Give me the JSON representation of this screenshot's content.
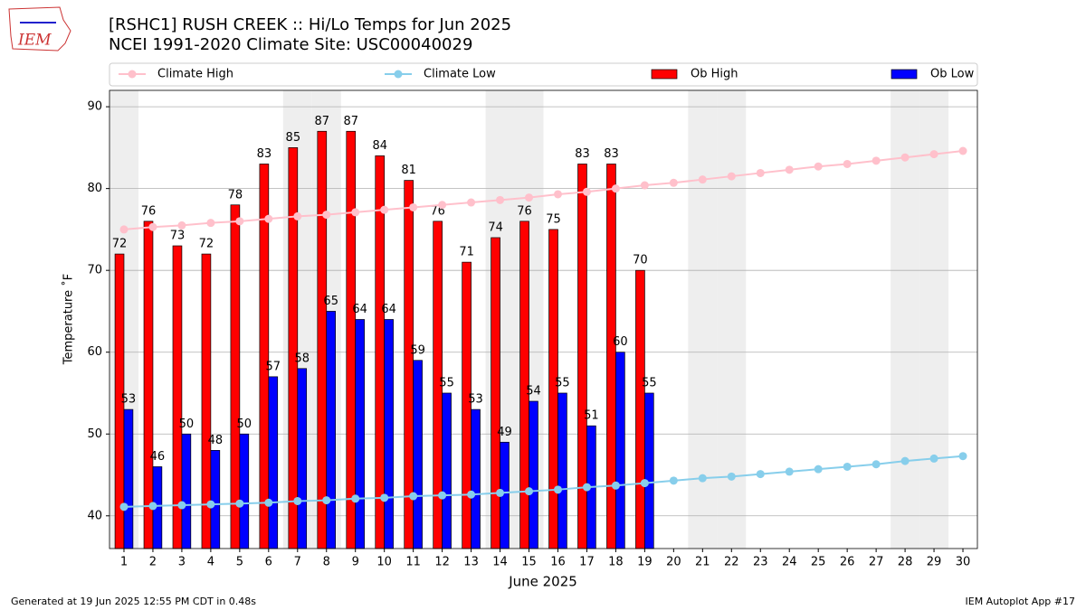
{
  "chart_data": {
    "type": "bar",
    "logo_text": "IEM",
    "title": "[RSHC1] RUSH CREEK :: Hi/Lo Temps for Jun 2025",
    "subtitle": "NCEI 1991-2020 Climate Site: USC00040029",
    "x_label": "June 2025",
    "y_label": "Temperature ˚F",
    "footer_left": "Generated at 19 Jun 2025 12:55 PM CDT in 0.48s",
    "footer_right": "IEM Autoplot App #17",
    "categories": [
      "1",
      "2",
      "3",
      "4",
      "5",
      "6",
      "7",
      "8",
      "9",
      "10",
      "11",
      "12",
      "13",
      "14",
      "15",
      "16",
      "17",
      "18",
      "19",
      "20",
      "21",
      "22",
      "23",
      "24",
      "25",
      "26",
      "27",
      "28",
      "29",
      "30"
    ],
    "weekend_days": [
      1,
      7,
      8,
      14,
      15,
      21,
      22,
      28,
      29
    ],
    "weekend_color": "#eeeeee",
    "series": [
      {
        "name": "Climate High",
        "type": "line",
        "color": "#ffc0cb",
        "values": [
          75.0,
          75.3,
          75.5,
          75.8,
          76.0,
          76.3,
          76.6,
          76.8,
          77.1,
          77.4,
          77.7,
          78.0,
          78.3,
          78.6,
          78.9,
          79.3,
          79.6,
          80.0,
          80.4,
          80.7,
          81.1,
          81.5,
          81.9,
          82.3,
          82.7,
          83.0,
          83.4,
          83.8,
          84.2,
          84.6
        ]
      },
      {
        "name": "Climate Low",
        "type": "line",
        "color": "#87ceeb",
        "values": [
          41.1,
          41.2,
          41.3,
          41.4,
          41.5,
          41.6,
          41.8,
          41.9,
          42.1,
          42.2,
          42.4,
          42.5,
          42.6,
          42.8,
          43.0,
          43.2,
          43.5,
          43.7,
          44.0,
          44.3,
          44.6,
          44.8,
          45.1,
          45.4,
          45.7,
          46.0,
          46.3,
          46.7,
          47.0,
          47.3
        ]
      },
      {
        "name": "Ob High",
        "type": "bar",
        "color": "#ff0000",
        "values": [
          72,
          76,
          73,
          72,
          78,
          83,
          85,
          87,
          87,
          84,
          81,
          76,
          71,
          74,
          76,
          75,
          83,
          83,
          70,
          null,
          null,
          null,
          null,
          null,
          null,
          null,
          null,
          null,
          null,
          null
        ]
      },
      {
        "name": "Ob Low",
        "type": "bar",
        "color": "#0000ff",
        "values": [
          53,
          46,
          50,
          48,
          50,
          57,
          58,
          65,
          64,
          64,
          59,
          55,
          53,
          49,
          54,
          55,
          51,
          60,
          55,
          null,
          null,
          null,
          null,
          null,
          null,
          null,
          null,
          null,
          null,
          null
        ]
      }
    ],
    "ylim": [
      36,
      92
    ],
    "yticks": [
      40,
      50,
      60,
      70,
      80,
      90
    ],
    "grid": true,
    "legend": "top"
  }
}
